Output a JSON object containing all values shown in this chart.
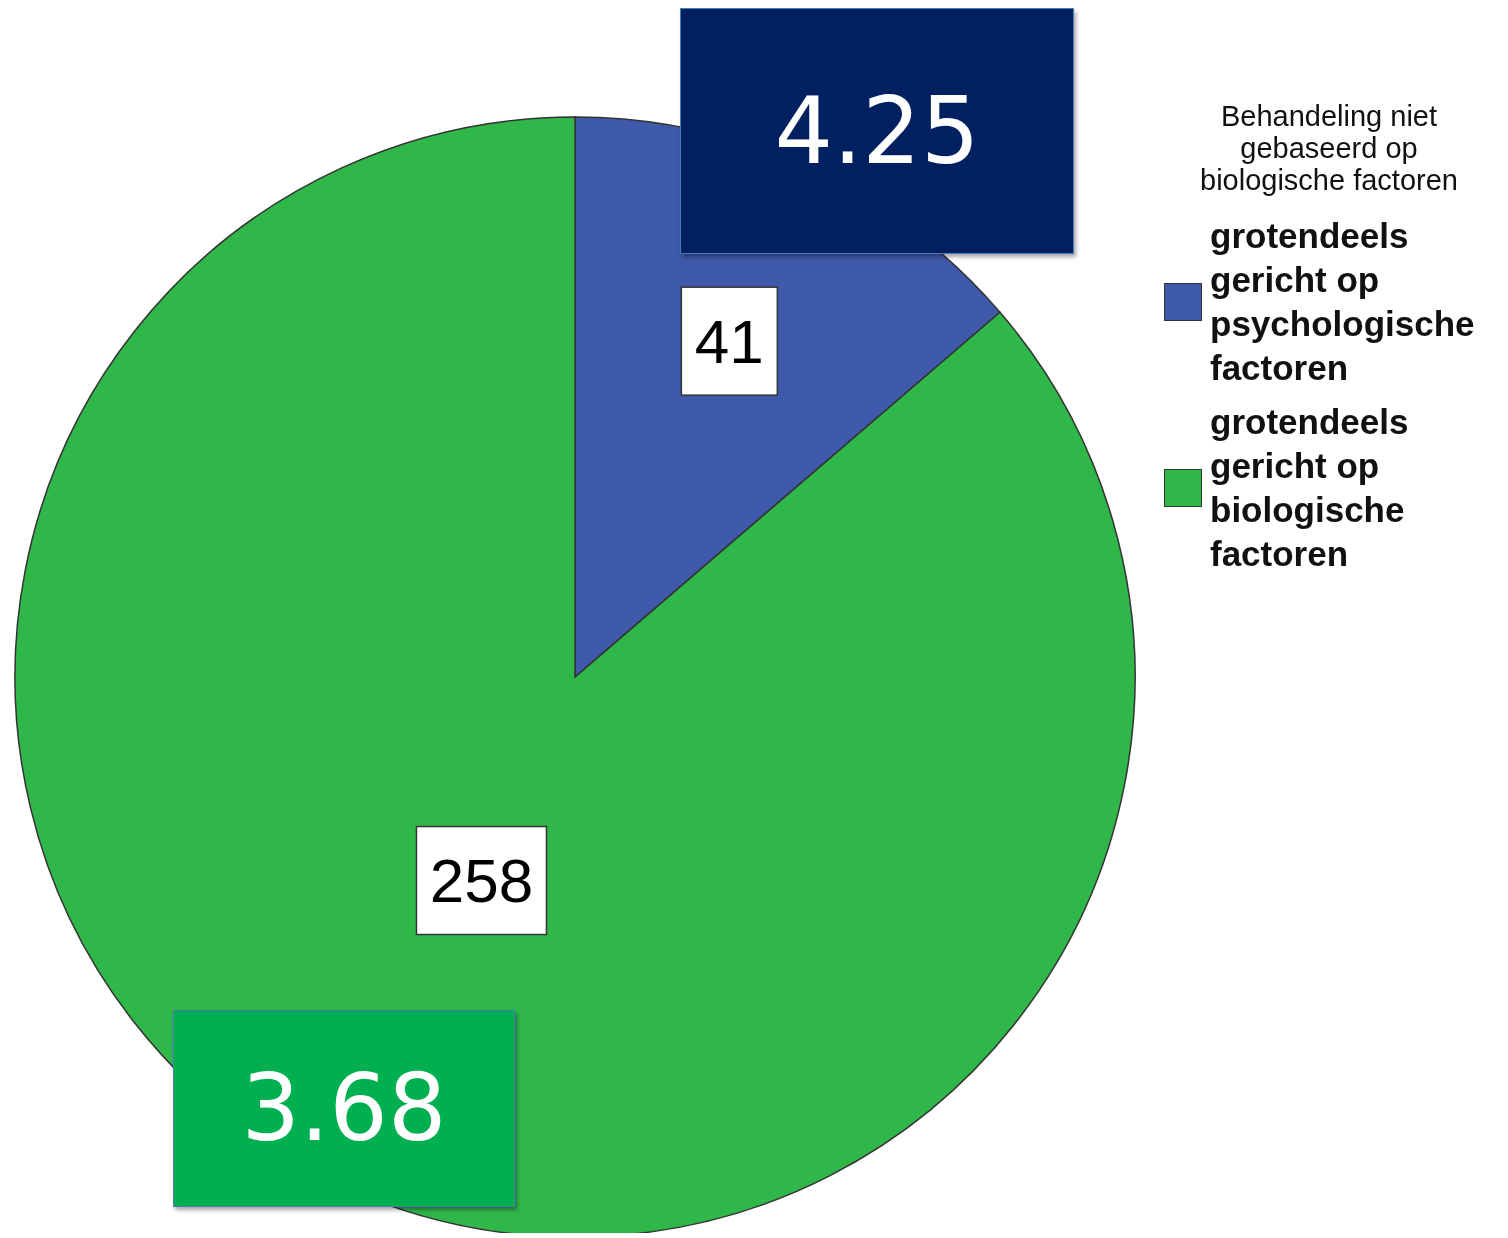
{
  "chart_data": {
    "type": "pie",
    "legend_title": "Behandeling niet gebaseerd op biologische factoren",
    "categories": [
      "grotendeels gericht op psychologische factoren",
      "grotendeels gericht op biologische factoren"
    ],
    "values": [
      41,
      258
    ],
    "colors": [
      "#3f59ab",
      "#2fb74a"
    ],
    "data_labels": true,
    "legend": "top right",
    "annotations": [
      "4.25",
      "3.68"
    ]
  }
}
